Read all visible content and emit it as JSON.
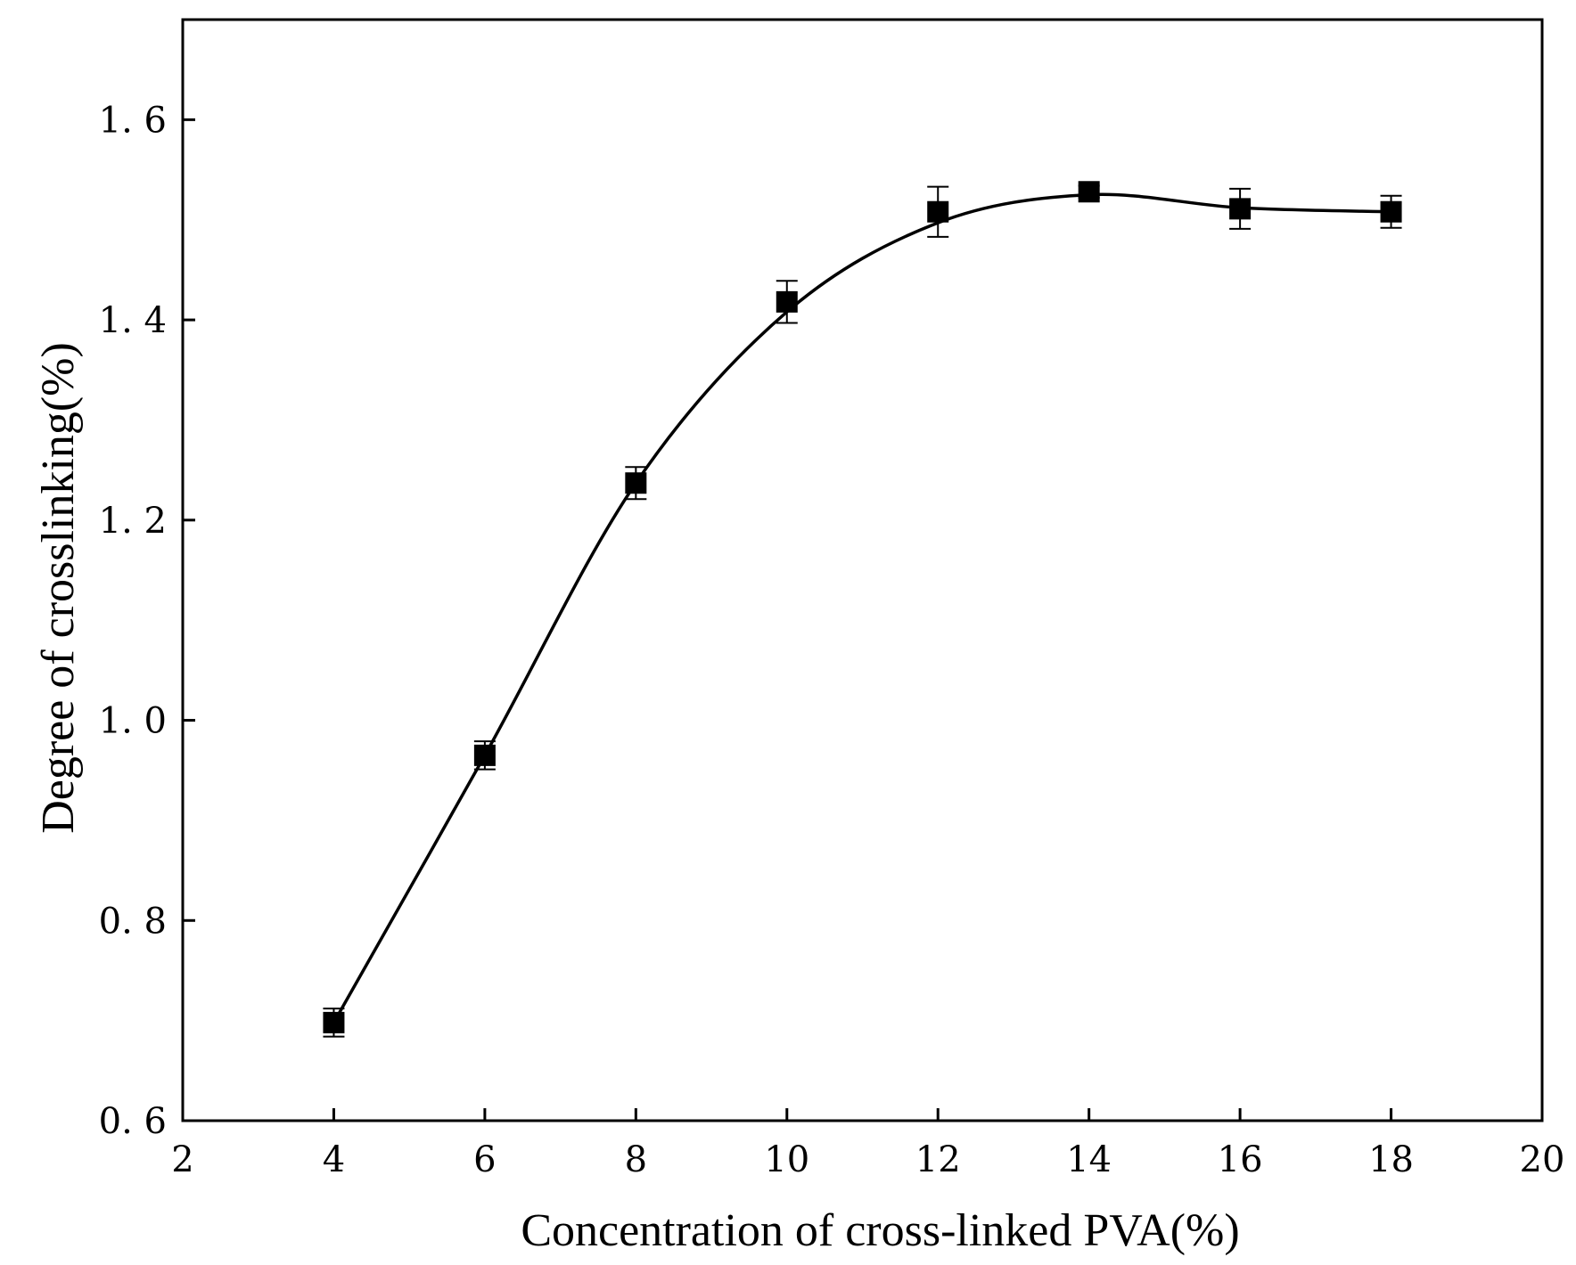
{
  "chart_data": {
    "type": "line",
    "title": "",
    "xlabel": "Concentration of cross-linked PVA(%)",
    "ylabel": "Degree of crosslinking(%)",
    "xlim": [
      2,
      20
    ],
    "ylim": [
      0.6,
      1.7
    ],
    "x_ticks": [
      2,
      4,
      6,
      8,
      10,
      12,
      14,
      16,
      18,
      20
    ],
    "x_tick_labels": [
      "2",
      "4",
      "6",
      "8",
      "10",
      "12",
      "14",
      "16",
      "18",
      "20"
    ],
    "y_ticks": [
      0.6,
      0.8,
      1.0,
      1.2,
      1.4,
      1.6
    ],
    "y_tick_labels": [
      "0. 6",
      "0. 8",
      "1. 0",
      "1. 2",
      "1. 4",
      "1. 6"
    ],
    "grid": false,
    "legend": "none",
    "series": [
      {
        "name": "Degree of crosslinking",
        "marker": "square",
        "color": "#000000",
        "x": [
          4,
          6,
          8,
          10,
          12,
          14,
          16,
          18
        ],
        "values": [
          0.698,
          0.965,
          1.237,
          1.418,
          1.508,
          1.528,
          1.511,
          1.508
        ],
        "error": [
          0.014,
          0.014,
          0.016,
          0.021,
          0.025,
          0.006,
          0.02,
          0.016
        ]
      }
    ],
    "fit_curve": {
      "style": "smooth",
      "color": "#000000",
      "x": [
        4,
        6,
        8,
        10,
        12,
        14,
        16,
        18
      ],
      "values": [
        0.698,
        0.965,
        1.237,
        1.408,
        1.497,
        1.525,
        1.512,
        1.508
      ]
    }
  }
}
